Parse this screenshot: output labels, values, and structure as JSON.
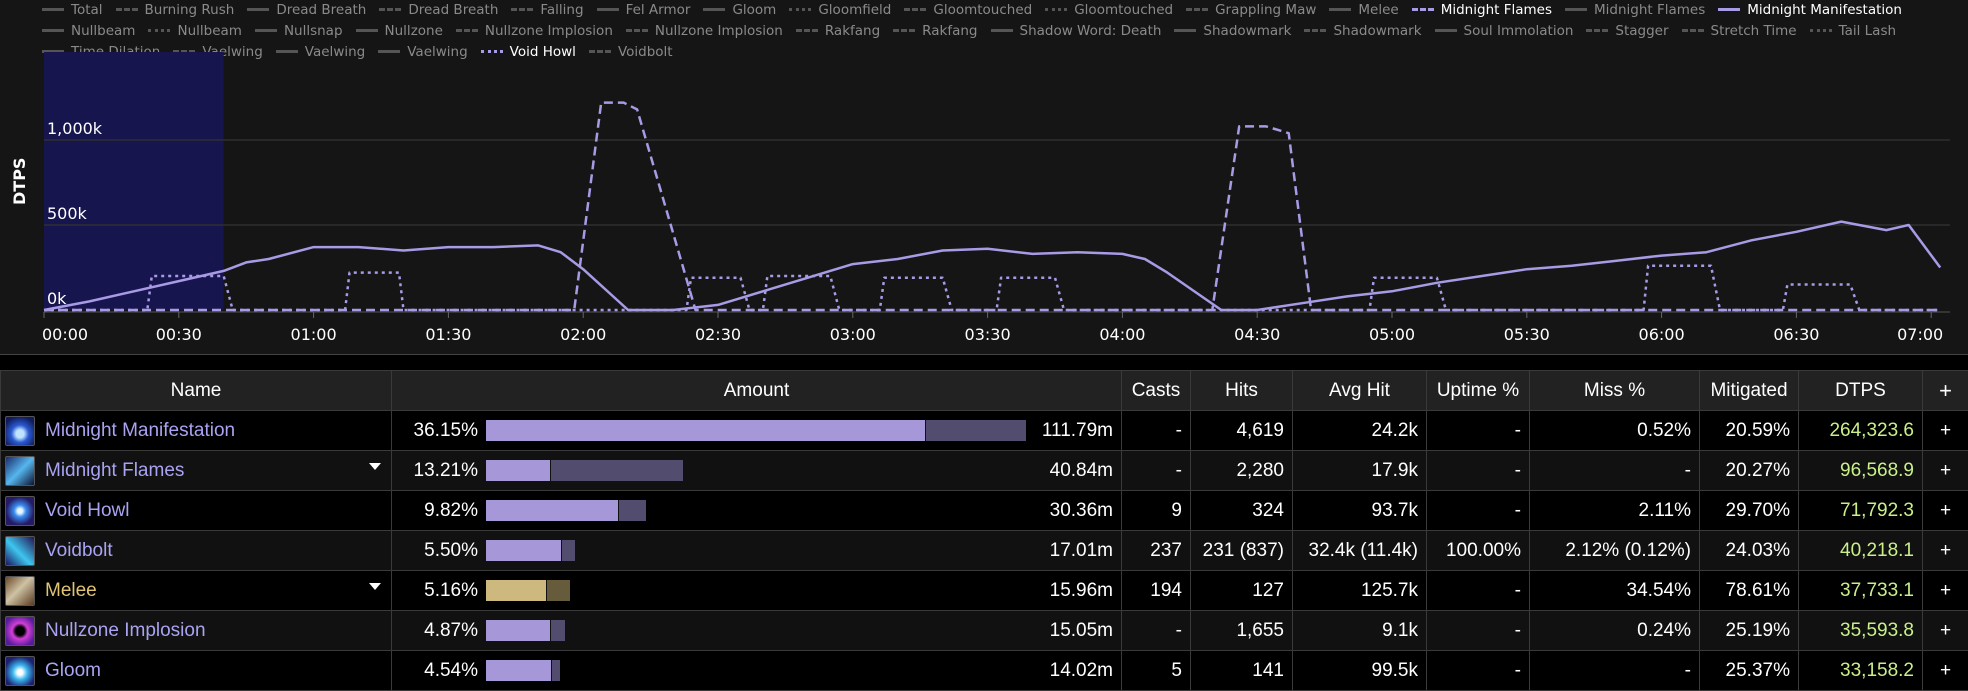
{
  "legend": [
    {
      "label": "Total",
      "style": "solid",
      "active": false
    },
    {
      "label": "Burning Rush",
      "style": "dashed",
      "active": false
    },
    {
      "label": "Dread Breath",
      "style": "solid",
      "active": false
    },
    {
      "label": "Dread Breath",
      "style": "dashed",
      "active": false
    },
    {
      "label": "Falling",
      "style": "dashed",
      "active": false
    },
    {
      "label": "Fel Armor",
      "style": "solid",
      "active": false
    },
    {
      "label": "Gloom",
      "style": "solid",
      "active": false
    },
    {
      "label": "Gloomfield",
      "style": "dotted",
      "active": false
    },
    {
      "label": "Gloomtouched",
      "style": "dashed",
      "active": false
    },
    {
      "label": "Gloomtouched",
      "style": "dotted",
      "active": false
    },
    {
      "label": "Grappling Maw",
      "style": "dashdot",
      "active": false
    },
    {
      "label": "Melee",
      "style": "solid",
      "active": false
    },
    {
      "label": "Midnight Flames",
      "style": "dashed",
      "active": true
    },
    {
      "label": "Midnight Flames",
      "style": "solid",
      "active": false
    },
    {
      "label": "Midnight Manifestation",
      "style": "solid",
      "active": true
    },
    {
      "label": "Nullbeam",
      "style": "solid",
      "active": false
    },
    {
      "label": "Nullbeam",
      "style": "dotted",
      "active": false
    },
    {
      "label": "Nullsnap",
      "style": "solid",
      "active": false
    },
    {
      "label": "Nullzone",
      "style": "solid",
      "active": false
    },
    {
      "label": "Nullzone Implosion",
      "style": "dashdot",
      "active": false
    },
    {
      "label": "Nullzone Implosion",
      "style": "dashdot",
      "active": false
    },
    {
      "label": "Rakfang",
      "style": "dashdot",
      "active": false
    },
    {
      "label": "Rakfang",
      "style": "dashdot",
      "active": false
    },
    {
      "label": "Shadow Word: Death",
      "style": "solid",
      "active": false
    },
    {
      "label": "Shadowmark",
      "style": "solid",
      "active": false
    },
    {
      "label": "Shadowmark",
      "style": "dashed",
      "active": false
    },
    {
      "label": "Soul Immolation",
      "style": "solid",
      "active": false
    },
    {
      "label": "Stagger",
      "style": "dashed",
      "active": false
    },
    {
      "label": "Stretch Time",
      "style": "dashdot",
      "active": false
    },
    {
      "label": "Tail Lash",
      "style": "dotted",
      "active": false
    },
    {
      "label": "Time Dilation",
      "style": "solid",
      "active": false
    },
    {
      "label": "Vaelwing",
      "style": "dashdot",
      "active": false
    },
    {
      "label": "Vaelwing",
      "style": "solid",
      "active": false
    },
    {
      "label": "Vaelwing",
      "style": "solid",
      "active": false
    },
    {
      "label": "Void Howl",
      "style": "dotted",
      "active": true
    },
    {
      "label": "Voidbolt",
      "style": "dashdot",
      "active": false
    }
  ],
  "chart_data": {
    "type": "line",
    "title": "",
    "xlabel": "",
    "ylabel": "DTPS",
    "x_ticks": [
      "00:00",
      "00:30",
      "01:00",
      "01:30",
      "02:00",
      "02:30",
      "03:00",
      "03:30",
      "04:00",
      "04:30",
      "05:00",
      "05:30",
      "06:00",
      "06:30",
      "07:00"
    ],
    "y_ticks": [
      "0k",
      "500k",
      "1,000k"
    ],
    "ylim": [
      0,
      1300000
    ],
    "xlim_seconds": [
      0,
      422
    ],
    "grid": true,
    "highlight_region_seconds": [
      0,
      40
    ],
    "series": [
      {
        "name": "Midnight Manifestation",
        "style": "solid",
        "color": "#a99ae6",
        "t": [
          0,
          10,
          20,
          30,
          40,
          45,
          50,
          60,
          70,
          80,
          90,
          100,
          110,
          115,
          120,
          130,
          140,
          150,
          160,
          170,
          180,
          190,
          200,
          210,
          220,
          230,
          240,
          245,
          250,
          262,
          270,
          280,
          290,
          300,
          310,
          320,
          330,
          340,
          350,
          360,
          370,
          380,
          390,
          400,
          410,
          415,
          422
        ],
        "values": [
          0,
          50000,
          110000,
          170000,
          230000,
          280000,
          300000,
          370000,
          370000,
          350000,
          370000,
          370000,
          380000,
          340000,
          240000,
          0,
          0,
          30000,
          110000,
          190000,
          270000,
          300000,
          350000,
          360000,
          330000,
          340000,
          330000,
          300000,
          220000,
          0,
          0,
          40000,
          80000,
          110000,
          160000,
          200000,
          240000,
          260000,
          290000,
          320000,
          340000,
          410000,
          460000,
          520000,
          470000,
          500000,
          250000
        ]
      },
      {
        "name": "Midnight Flames",
        "style": "dashed",
        "color": "#a99ae6",
        "t": [
          0,
          118,
          124,
          129,
          132,
          145,
          260,
          266,
          272,
          277,
          282,
          422
        ],
        "values": [
          0,
          0,
          1220000,
          1220000,
          1180000,
          0,
          0,
          1080000,
          1080000,
          1040000,
          0,
          0
        ]
      },
      {
        "name": "Void Howl",
        "style": "dotted",
        "color": "#a99ae6",
        "t": [
          0,
          23,
          24,
          40,
          42,
          67,
          68,
          79,
          80,
          143,
          144,
          155,
          157,
          160,
          161,
          175,
          177,
          186,
          187,
          200,
          202,
          212,
          213,
          225,
          227,
          295,
          296,
          310,
          312,
          356,
          357,
          371,
          373,
          387,
          388,
          402,
          404,
          422
        ],
        "values": [
          0,
          0,
          200000,
          200000,
          0,
          0,
          220000,
          220000,
          0,
          0,
          190000,
          190000,
          0,
          0,
          200000,
          200000,
          0,
          0,
          190000,
          190000,
          0,
          0,
          190000,
          190000,
          0,
          0,
          190000,
          190000,
          0,
          0,
          260000,
          260000,
          0,
          0,
          150000,
          150000,
          0,
          0
        ]
      }
    ]
  },
  "table": {
    "columns": [
      "Name",
      "Amount",
      "Casts",
      "Hits",
      "Avg Hit",
      "Uptime %",
      "Miss %",
      "Mitigated",
      "DTPS",
      "+"
    ],
    "rows": [
      {
        "name": "Midnight Manifestation",
        "type": "spell",
        "expandable": false,
        "pct": "36.15%",
        "bar_main": 440,
        "bar_total": 540,
        "amount": "111.79m",
        "casts": "-",
        "hits": "4,619",
        "avg_hit": "24.2k",
        "uptime": "-",
        "miss": "0.52%",
        "mitigated": "20.59%",
        "dtps": "264,323.6",
        "plus": "+"
      },
      {
        "name": "Midnight Flames",
        "type": "spell",
        "expandable": true,
        "pct": "13.21%",
        "bar_main": 65,
        "bar_total": 197,
        "amount": "40.84m",
        "casts": "-",
        "hits": "2,280",
        "avg_hit": "17.9k",
        "uptime": "-",
        "miss": "-",
        "mitigated": "20.27%",
        "dtps": "96,568.9",
        "plus": "+"
      },
      {
        "name": "Void Howl",
        "type": "spell",
        "expandable": false,
        "pct": "9.82%",
        "bar_main": 133,
        "bar_total": 160,
        "amount": "30.36m",
        "casts": "9",
        "hits": "324",
        "avg_hit": "93.7k",
        "uptime": "-",
        "miss": "2.11%",
        "mitigated": "29.70%",
        "dtps": "71,792.3",
        "plus": "+"
      },
      {
        "name": "Voidbolt",
        "type": "spell",
        "expandable": false,
        "pct": "5.50%",
        "bar_main": 76,
        "bar_total": 89,
        "amount": "17.01m",
        "casts": "237",
        "hits": "231 (837)",
        "avg_hit": "32.4k (11.4k)",
        "uptime": "100.00%",
        "miss": "2.12% (0.12%)",
        "mitigated": "24.03%",
        "dtps": "40,218.1",
        "plus": "+"
      },
      {
        "name": "Melee",
        "type": "melee",
        "expandable": true,
        "pct": "5.16%",
        "bar_main": 61,
        "bar_total": 84,
        "amount": "15.96m",
        "casts": "194",
        "hits": "127",
        "avg_hit": "125.7k",
        "uptime": "-",
        "miss": "34.54%",
        "mitigated": "78.61%",
        "dtps": "37,733.1",
        "plus": "+"
      },
      {
        "name": "Nullzone Implosion",
        "type": "spell",
        "expandable": false,
        "pct": "4.87%",
        "bar_main": 65,
        "bar_total": 79,
        "amount": "15.05m",
        "casts": "-",
        "hits": "1,655",
        "avg_hit": "9.1k",
        "uptime": "-",
        "miss": "0.24%",
        "mitigated": "25.19%",
        "dtps": "35,593.8",
        "plus": "+"
      },
      {
        "name": "Gloom",
        "type": "spell",
        "expandable": false,
        "pct": "4.54%",
        "bar_main": 66,
        "bar_total": 74,
        "amount": "14.02m",
        "casts": "5",
        "hits": "141",
        "avg_hit": "99.5k",
        "uptime": "-",
        "miss": "-",
        "mitigated": "25.37%",
        "dtps": "33,158.2",
        "plus": "+"
      }
    ]
  },
  "colors": {
    "accent": "#a99ae6",
    "bar_main": "#a597d8",
    "bar_rest": "#524c6e",
    "melee_main": "#cdb97d",
    "melee_rest": "#665b3b",
    "dtps": "#c9f08a",
    "highlight_band": "#16154e"
  }
}
